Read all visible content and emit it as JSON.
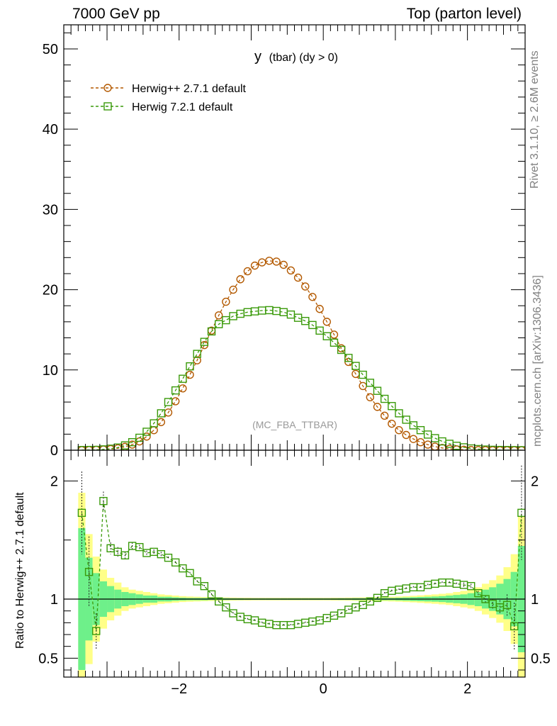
{
  "header": {
    "left": "7000 GeV pp",
    "right": "Top (parton level)"
  },
  "side_labels": {
    "rivet": "Rivet 3.1.10, ≥ 2.6M events",
    "mcplots": "mcplots.cern.ch [arXiv:1306.3436]"
  },
  "plot_title": {
    "main": "y",
    "sub": "(tbar) (dy > 0)"
  },
  "analysis_tag": "(MC_FBA_TTBAR)",
  "ratio_ylabel": "Ratio to Herwig++ 2.7.1 default",
  "colors": {
    "herwigpp": "#b35900",
    "herwig7": "#3a9a0a",
    "band_inner": "#6ef08a",
    "band_outer": "#ffff88"
  },
  "chart_data": [
    {
      "type": "scatter",
      "title": "y (tbar) (dy > 0)",
      "xlim": [
        -3.6,
        2.8
      ],
      "ylim": [
        0,
        53
      ],
      "xticks": [
        -2,
        0,
        2
      ],
      "yticks": [
        0,
        10,
        20,
        30,
        40,
        50
      ],
      "legend_position": "top-left",
      "x": [
        -3.35,
        -3.25,
        -3.15,
        -3.05,
        -2.95,
        -2.85,
        -2.75,
        -2.65,
        -2.55,
        -2.45,
        -2.35,
        -2.25,
        -2.15,
        -2.05,
        -1.95,
        -1.85,
        -1.75,
        -1.65,
        -1.55,
        -1.45,
        -1.35,
        -1.25,
        -1.15,
        -1.05,
        -0.95,
        -0.85,
        -0.75,
        -0.65,
        -0.55,
        -0.45,
        -0.35,
        -0.25,
        -0.15,
        -0.05,
        0.05,
        0.15,
        0.25,
        0.35,
        0.45,
        0.55,
        0.65,
        0.75,
        0.85,
        0.95,
        1.05,
        1.15,
        1.25,
        1.35,
        1.45,
        1.55,
        1.65,
        1.75,
        1.85,
        1.95,
        2.05,
        2.15,
        2.25,
        2.35,
        2.45,
        2.55,
        2.65,
        2.75
      ],
      "series": [
        {
          "name": "Herwig++ 2.7.1 default",
          "marker": "circle",
          "values": [
            0.01,
            0.02,
            0.05,
            0.08,
            0.14,
            0.24,
            0.42,
            0.7,
            1.1,
            1.7,
            2.5,
            3.5,
            4.7,
            6.1,
            7.7,
            9.4,
            11.2,
            13.1,
            14.9,
            16.8,
            18.5,
            20.0,
            21.3,
            22.3,
            23.0,
            23.4,
            23.6,
            23.5,
            23.1,
            22.4,
            21.5,
            20.4,
            19.1,
            17.6,
            16.0,
            14.4,
            12.7,
            11.0,
            9.5,
            8.0,
            6.6,
            5.4,
            4.3,
            3.3,
            2.5,
            1.9,
            1.4,
            1.0,
            0.7,
            0.45,
            0.28,
            0.17,
            0.1,
            0.06,
            0.03,
            0.02,
            0.01,
            0.0,
            0.0,
            0.0,
            0.0,
            0.0
          ]
        },
        {
          "name": "Herwig 7.2.1 default",
          "marker": "square",
          "values": [
            0.02,
            0.03,
            0.04,
            0.1,
            0.19,
            0.33,
            0.6,
            1.0,
            1.55,
            2.3,
            3.35,
            4.6,
            6.0,
            7.45,
            8.9,
            10.45,
            12.0,
            13.5,
            14.8,
            15.7,
            16.2,
            16.7,
            17.0,
            17.2,
            17.3,
            17.4,
            17.45,
            17.35,
            17.2,
            16.9,
            16.5,
            16.1,
            15.6,
            14.9,
            14.2,
            13.4,
            12.5,
            11.5,
            10.5,
            9.4,
            8.4,
            7.4,
            6.4,
            5.5,
            4.6,
            3.8,
            3.1,
            2.5,
            1.95,
            1.5,
            1.1,
            0.8,
            0.55,
            0.36,
            0.22,
            0.14,
            0.08,
            0.05,
            0.03,
            0.02,
            0.01,
            0.0
          ]
        }
      ]
    },
    {
      "type": "scatter",
      "ylabel": "Ratio to Herwig++ 2.7.1 default",
      "xlim": [
        -3.6,
        2.8
      ],
      "ylim": [
        0.34,
        2.26
      ],
      "xticks": [
        -2,
        0,
        2
      ],
      "yticks": [
        0.5,
        1,
        2
      ],
      "reference_line": 1,
      "x": [
        -3.35,
        -3.25,
        -3.15,
        -3.05,
        -2.95,
        -2.85,
        -2.75,
        -2.65,
        -2.55,
        -2.45,
        -2.35,
        -2.25,
        -2.15,
        -2.05,
        -1.95,
        -1.85,
        -1.75,
        -1.65,
        -1.55,
        -1.45,
        -1.35,
        -1.25,
        -1.15,
        -1.05,
        -0.95,
        -0.85,
        -0.75,
        -0.65,
        -0.55,
        -0.45,
        -0.35,
        -0.25,
        -0.15,
        -0.05,
        0.05,
        0.15,
        0.25,
        0.35,
        0.45,
        0.55,
        0.65,
        0.75,
        0.85,
        0.95,
        1.05,
        1.15,
        1.25,
        1.35,
        1.45,
        1.55,
        1.65,
        1.75,
        1.85,
        1.95,
        2.05,
        2.15,
        2.25,
        2.35,
        2.45,
        2.55,
        2.65,
        2.75
      ],
      "series": [
        {
          "name": "Herwig 7.2.1 default",
          "marker": "square",
          "values": [
            1.73,
            1.23,
            0.73,
            1.83,
            1.43,
            1.4,
            1.37,
            1.45,
            1.44,
            1.39,
            1.4,
            1.38,
            1.35,
            1.31,
            1.26,
            1.22,
            1.15,
            1.11,
            1.04,
            0.98,
            0.93,
            0.88,
            0.85,
            0.83,
            0.82,
            0.8,
            0.79,
            0.78,
            0.78,
            0.78,
            0.79,
            0.8,
            0.81,
            0.82,
            0.84,
            0.86,
            0.88,
            0.91,
            0.93,
            0.95,
            0.98,
            1.01,
            1.05,
            1.07,
            1.08,
            1.09,
            1.1,
            1.1,
            1.12,
            1.13,
            1.14,
            1.14,
            1.13,
            1.12,
            1.11,
            1.05,
            1.0,
            0.96,
            0.93,
            0.95,
            0.77,
            1.73
          ],
          "errors": [
            0.35,
            0.3,
            0.15,
            0.08,
            0.05,
            0.04,
            0.03,
            0.03,
            0.02,
            0.02,
            0.02,
            0.02,
            0.01,
            0.01,
            0.01,
            0.01,
            0.01,
            0.01,
            0.01,
            0.01,
            0.01,
            0.01,
            0.01,
            0.01,
            0.01,
            0.01,
            0.01,
            0.01,
            0.01,
            0.01,
            0.01,
            0.01,
            0.01,
            0.01,
            0.01,
            0.01,
            0.01,
            0.01,
            0.01,
            0.01,
            0.01,
            0.01,
            0.01,
            0.01,
            0.01,
            0.01,
            0.01,
            0.01,
            0.01,
            0.01,
            0.01,
            0.01,
            0.01,
            0.02,
            0.02,
            0.02,
            0.03,
            0.04,
            0.06,
            0.09,
            0.2,
            0.4
          ]
        }
      ],
      "uncertainty_band": {
        "inner_halfwidth": [
          0.6,
          0.35,
          0.22,
          0.15,
          0.11,
          0.08,
          0.06,
          0.05,
          0.04,
          0.03,
          0.03,
          0.02,
          0.02,
          0.015,
          0.012,
          0.01,
          0.01,
          0.01,
          0.008,
          0.008,
          0.008,
          0.007,
          0.007,
          0.006,
          0.006,
          0.006,
          0.006,
          0.006,
          0.006,
          0.006,
          0.006,
          0.006,
          0.006,
          0.006,
          0.006,
          0.006,
          0.007,
          0.007,
          0.008,
          0.008,
          0.008,
          0.009,
          0.01,
          0.01,
          0.012,
          0.014,
          0.016,
          0.018,
          0.02,
          0.022,
          0.025,
          0.03,
          0.035,
          0.04,
          0.05,
          0.06,
          0.08,
          0.1,
          0.13,
          0.17,
          0.23,
          0.45
        ],
        "outer_halfwidth": [
          0.9,
          0.55,
          0.36,
          0.25,
          0.18,
          0.14,
          0.1,
          0.08,
          0.07,
          0.06,
          0.05,
          0.04,
          0.035,
          0.03,
          0.025,
          0.022,
          0.02,
          0.018,
          0.016,
          0.015,
          0.014,
          0.013,
          0.012,
          0.012,
          0.011,
          0.011,
          0.011,
          0.011,
          0.011,
          0.011,
          0.011,
          0.011,
          0.011,
          0.011,
          0.011,
          0.012,
          0.012,
          0.013,
          0.014,
          0.015,
          0.016,
          0.017,
          0.018,
          0.02,
          0.022,
          0.025,
          0.028,
          0.032,
          0.036,
          0.04,
          0.045,
          0.05,
          0.06,
          0.07,
          0.08,
          0.1,
          0.13,
          0.16,
          0.2,
          0.27,
          0.38,
          0.7
        ]
      }
    }
  ]
}
